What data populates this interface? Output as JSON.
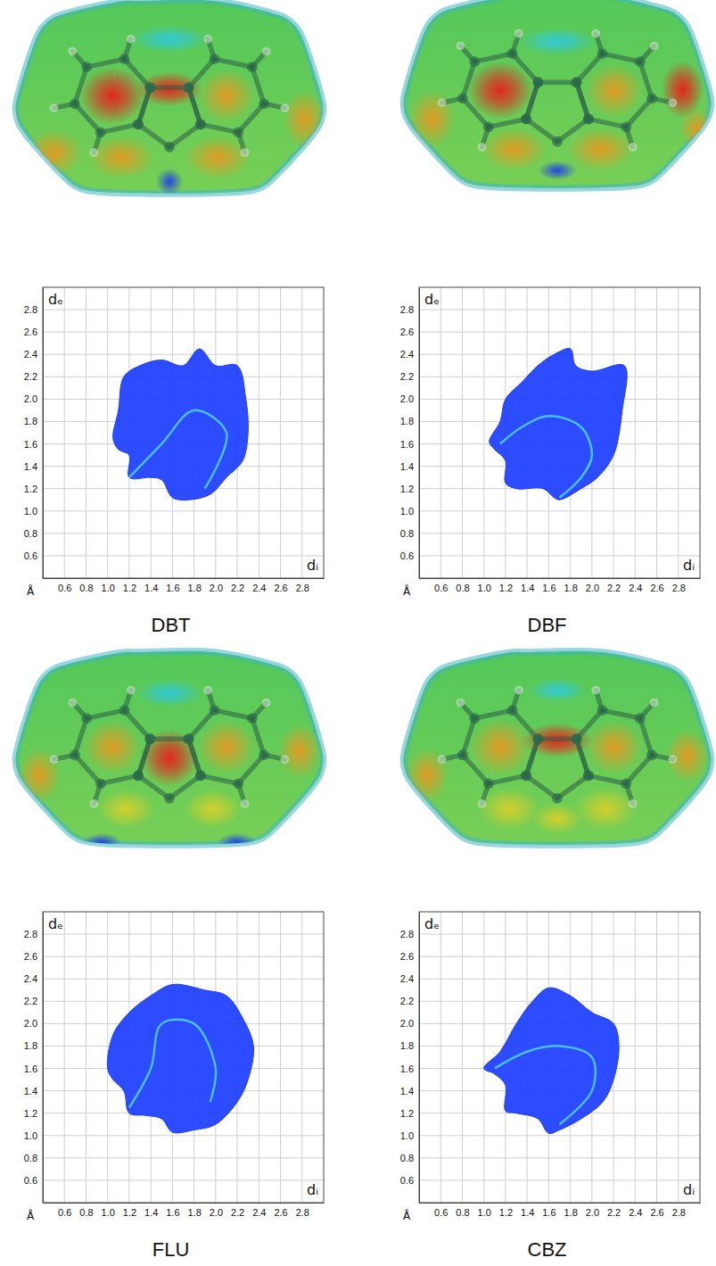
{
  "chart_data": [
    {
      "type": "area",
      "title": "DBT",
      "x_label": "dᵢ",
      "y_label": "dₑ",
      "annotations": [
        "Å"
      ],
      "xlim": [
        0.4,
        3.0
      ],
      "ylim": [
        0.4,
        3.0
      ],
      "xticks": [
        0.6,
        0.8,
        {
          "value": 1,
          "label": "1.0"
        },
        1.2,
        1.4,
        1.6,
        1.8,
        {
          "value": 2,
          "label": "2.0"
        },
        2.2,
        2.4,
        2.6,
        2.8
      ],
      "yticks": [
        0.6,
        0.8,
        {
          "value": 1,
          "label": "1.0"
        },
        1.2,
        1.4,
        1.6,
        1.8,
        {
          "value": 2,
          "label": "2.0"
        },
        2.2,
        2.4,
        2.6,
        2.8
      ],
      "grid": true,
      "tick_labels": true,
      "series": [
        {
          "type": "area",
          "color": "#1b3dff",
          "x": [
            1.05,
            1.1,
            1.15,
            1.3,
            1.5,
            1.7,
            1.85,
            2.0,
            2.2,
            2.28,
            2.3,
            2.25,
            2.1,
            1.95,
            1.75,
            1.6,
            1.5,
            1.4,
            1.2,
            1.2,
            1.1
          ],
          "values": [
            1.65,
            1.9,
            2.2,
            2.3,
            2.35,
            2.3,
            2.45,
            2.3,
            2.3,
            2.0,
            1.7,
            1.45,
            1.3,
            1.15,
            1.1,
            1.12,
            1.28,
            1.3,
            1.3,
            1.5,
            1.55
          ]
        },
        {
          "type": "line",
          "color": "#4fd3e6",
          "x": [
            1.2,
            1.5,
            1.8,
            2.1,
            1.9
          ],
          "values": [
            1.3,
            1.6,
            1.9,
            1.7,
            1.2
          ]
        }
      ]
    },
    {
      "type": "area",
      "title": "DBF",
      "x_label": "dᵢ",
      "y_label": "dₑ",
      "annotations": [
        "Å"
      ],
      "xlim": [
        0.4,
        3.0
      ],
      "ylim": [
        0.4,
        3.0
      ],
      "xticks": [
        0.6,
        0.8,
        {
          "value": 1,
          "label": "1.0"
        },
        1.2,
        1.4,
        1.6,
        1.8,
        {
          "value": 2,
          "label": "2.0"
        },
        2.2,
        2.4,
        2.6,
        2.8
      ],
      "yticks": [
        0.6,
        0.8,
        {
          "value": 1,
          "label": "1.0"
        },
        1.2,
        1.4,
        1.6,
        1.8,
        {
          "value": 2,
          "label": "2.0"
        },
        2.2,
        2.4,
        2.6,
        2.8
      ],
      "grid": true,
      "tick_labels": true,
      "series": [
        {
          "type": "area",
          "color": "#1b3dff",
          "x": [
            1.05,
            1.15,
            1.2,
            1.35,
            1.5,
            1.65,
            1.8,
            1.85,
            2.0,
            2.3,
            2.28,
            2.2,
            2.05,
            1.9,
            1.7,
            1.65,
            1.55,
            1.3,
            1.2,
            1.2,
            1.1
          ],
          "values": [
            1.62,
            1.8,
            2.0,
            2.15,
            2.3,
            2.4,
            2.45,
            2.3,
            2.25,
            2.3,
            1.9,
            1.5,
            1.3,
            1.2,
            1.1,
            1.12,
            1.2,
            1.2,
            1.25,
            1.45,
            1.55
          ]
        },
        {
          "type": "line",
          "color": "#4fd3e6",
          "x": [
            1.15,
            1.35,
            1.6,
            1.9,
            2.0,
            1.9,
            1.7
          ],
          "values": [
            1.6,
            1.75,
            1.85,
            1.75,
            1.5,
            1.3,
            1.12
          ]
        }
      ]
    },
    {
      "type": "area",
      "title": "FLU",
      "x_label": "dᵢ",
      "y_label": "dₑ",
      "annotations": [
        "Å"
      ],
      "xlim": [
        0.4,
        3.0
      ],
      "ylim": [
        0.4,
        3.0
      ],
      "xticks": [
        0.6,
        0.8,
        {
          "value": 1,
          "label": "1.0"
        },
        1.2,
        1.4,
        1.6,
        1.8,
        {
          "value": 2,
          "label": "2.0"
        },
        2.2,
        2.4,
        2.6,
        2.8
      ],
      "yticks": [
        0.6,
        0.8,
        {
          "value": 1,
          "label": "1.0"
        },
        1.2,
        1.4,
        1.6,
        1.8,
        {
          "value": 2,
          "label": "2.0"
        },
        2.2,
        2.4,
        2.6,
        2.8
      ],
      "grid": true,
      "tick_labels": true,
      "series": [
        {
          "type": "area",
          "color": "#1b3dff",
          "x": [
            1.0,
            1.05,
            1.2,
            1.4,
            1.6,
            1.9,
            2.1,
            2.25,
            2.35,
            2.3,
            2.2,
            2.0,
            1.8,
            1.6,
            1.5,
            1.35,
            1.2,
            1.15,
            1.05
          ],
          "values": [
            1.6,
            1.9,
            2.1,
            2.25,
            2.35,
            2.3,
            2.25,
            2.05,
            1.8,
            1.5,
            1.3,
            1.1,
            1.05,
            1.03,
            1.15,
            1.18,
            1.2,
            1.4,
            1.5
          ]
        },
        {
          "type": "line",
          "color": "#4fd3e6",
          "x": [
            1.2,
            1.4,
            1.5,
            1.8,
            2.0,
            1.95
          ],
          "values": [
            1.25,
            1.6,
            2.0,
            2.0,
            1.6,
            1.3
          ]
        }
      ]
    },
    {
      "type": "area",
      "title": "CBZ",
      "x_label": "dᵢ",
      "y_label": "dₑ",
      "annotations": [
        "Å"
      ],
      "xlim": [
        0.4,
        3.0
      ],
      "ylim": [
        0.4,
        3.0
      ],
      "xticks": [
        0.6,
        0.8,
        {
          "value": 1,
          "label": "1.0"
        },
        1.2,
        1.4,
        1.6,
        1.8,
        {
          "value": 2,
          "label": "2.0"
        },
        2.2,
        2.4,
        2.6,
        2.8
      ],
      "yticks": [
        0.6,
        0.8,
        {
          "value": 1,
          "label": "1.0"
        },
        1.2,
        1.4,
        1.6,
        1.8,
        {
          "value": 2,
          "label": "2.0"
        },
        2.2,
        2.4,
        2.6,
        2.8
      ],
      "grid": true,
      "tick_labels": true,
      "series": [
        {
          "type": "area",
          "color": "#1b3dff",
          "x": [
            1.0,
            1.15,
            1.3,
            1.45,
            1.6,
            1.8,
            2.0,
            2.2,
            2.25,
            2.2,
            2.1,
            1.9,
            1.7,
            1.6,
            1.5,
            1.3,
            1.2,
            1.2,
            1.1
          ],
          "values": [
            1.6,
            1.75,
            2.0,
            2.2,
            2.32,
            2.25,
            2.1,
            2.0,
            1.8,
            1.5,
            1.3,
            1.15,
            1.05,
            1.02,
            1.15,
            1.2,
            1.22,
            1.45,
            1.55
          ]
        },
        {
          "type": "line",
          "color": "#4fd3e6",
          "x": [
            1.1,
            1.4,
            1.7,
            2.0,
            2.0,
            1.7
          ],
          "values": [
            1.6,
            1.75,
            1.8,
            1.7,
            1.4,
            1.1
          ]
        }
      ]
    }
  ]
}
